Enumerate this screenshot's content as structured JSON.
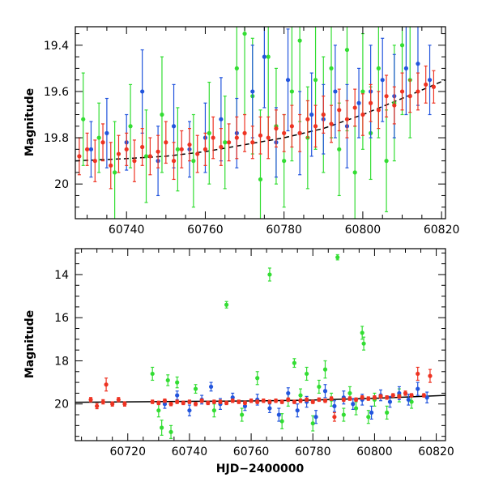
{
  "chart_data": [
    {
      "type": "scatter",
      "title": "",
      "xlabel": "",
      "ylabel": "Magnitude",
      "xlim": [
        60727,
        60821
      ],
      "ylim": [
        20.15,
        19.32
      ],
      "y_inverted": true,
      "xticks": [
        60740,
        60760,
        60780,
        60800,
        60820
      ],
      "yticks": [
        19.4,
        19.6,
        19.8,
        20
      ],
      "ytick_labels": [
        "19.4",
        "19.6",
        "19.8",
        "20"
      ],
      "grid": false,
      "legend": "none",
      "model_curve": {
        "color": "#000000",
        "style": "dashed",
        "x": [
          60727,
          60740,
          60750,
          60760,
          60770,
          60780,
          60790,
          60800,
          60810,
          60821
        ],
        "y": [
          19.9,
          19.89,
          19.88,
          19.86,
          19.83,
          19.8,
          19.76,
          19.7,
          19.63,
          19.55
        ]
      },
      "series": [
        {
          "color": "#33dd33",
          "x": [
            60729,
            60733,
            60737,
            60741,
            60745,
            60749,
            60753,
            60757,
            60761,
            60765,
            60768,
            60770,
            60772,
            60774,
            60776,
            60778,
            60780,
            60782,
            60784,
            60786,
            60788,
            60790,
            60792,
            60794,
            60796,
            60798,
            60800,
            60802,
            60804,
            60806,
            60808,
            60810,
            60812
          ],
          "y": [
            19.72,
            19.8,
            19.95,
            19.75,
            19.88,
            19.7,
            19.85,
            19.9,
            19.78,
            19.82,
            19.5,
            19.35,
            19.62,
            19.98,
            19.45,
            19.75,
            19.9,
            19.6,
            19.38,
            19.8,
            19.55,
            19.7,
            19.5,
            19.85,
            19.42,
            19.95,
            19.6,
            19.78,
            19.5,
            19.9,
            19.65,
            19.4,
            19.55
          ],
          "err": [
            0.2,
            0.15,
            0.22,
            0.18,
            0.2,
            0.25,
            0.18,
            0.2,
            0.22,
            0.2,
            0.3,
            0.35,
            0.25,
            0.3,
            0.35,
            0.25,
            0.2,
            0.3,
            0.35,
            0.22,
            0.3,
            0.25,
            0.3,
            0.2,
            0.35,
            0.2,
            0.25,
            0.2,
            0.3,
            0.22,
            0.25,
            0.3,
            0.25
          ]
        },
        {
          "color": "#2255dd",
          "x": [
            60731,
            60735,
            60740,
            60744,
            60748,
            60752,
            60756,
            60760,
            60764,
            60768,
            60772,
            60775,
            60778,
            60781,
            60784,
            60787,
            60790,
            60793,
            60796,
            60799,
            60802,
            60805,
            60808,
            60811,
            60814,
            60817
          ],
          "y": [
            19.85,
            19.78,
            19.82,
            19.6,
            19.9,
            19.75,
            19.85,
            19.8,
            19.72,
            19.78,
            19.6,
            19.45,
            19.82,
            19.55,
            19.78,
            19.7,
            19.72,
            19.6,
            19.75,
            19.65,
            19.6,
            19.55,
            19.62,
            19.5,
            19.48,
            19.55
          ],
          "err": [
            0.12,
            0.15,
            0.12,
            0.18,
            0.15,
            0.18,
            0.12,
            0.15,
            0.18,
            0.15,
            0.2,
            0.22,
            0.15,
            0.22,
            0.18,
            0.18,
            0.15,
            0.2,
            0.18,
            0.15,
            0.2,
            0.18,
            0.18,
            0.2,
            0.18,
            0.15
          ]
        },
        {
          "color": "#ee3322",
          "x": [
            60728,
            60730,
            60732,
            60734,
            60736,
            60738,
            60740,
            60742,
            60744,
            60746,
            60748,
            60750,
            60752,
            60754,
            60756,
            60758,
            60760,
            60762,
            60764,
            60766,
            60768,
            60770,
            60772,
            60774,
            60776,
            60778,
            60780,
            60782,
            60784,
            60786,
            60788,
            60790,
            60792,
            60794,
            60796,
            60798,
            60800,
            60802,
            60804,
            60806,
            60808,
            60810,
            60812,
            60814,
            60816,
            60818
          ],
          "y": [
            19.88,
            19.85,
            19.9,
            19.82,
            19.92,
            19.87,
            19.85,
            19.9,
            19.84,
            19.88,
            19.86,
            19.82,
            19.9,
            19.85,
            19.83,
            19.87,
            19.85,
            19.8,
            19.84,
            19.82,
            19.8,
            19.78,
            19.82,
            19.79,
            19.8,
            19.76,
            19.78,
            19.75,
            19.78,
            19.72,
            19.75,
            19.7,
            19.74,
            19.68,
            19.72,
            19.67,
            19.7,
            19.65,
            19.68,
            19.62,
            19.66,
            19.6,
            19.62,
            19.6,
            19.57,
            19.58
          ],
          "err": [
            0.08,
            0.07,
            0.09,
            0.08,
            0.1,
            0.08,
            0.07,
            0.09,
            0.08,
            0.08,
            0.07,
            0.09,
            0.08,
            0.08,
            0.07,
            0.08,
            0.07,
            0.09,
            0.08,
            0.08,
            0.09,
            0.08,
            0.07,
            0.08,
            0.09,
            0.08,
            0.08,
            0.09,
            0.08,
            0.08,
            0.09,
            0.08,
            0.08,
            0.09,
            0.08,
            0.08,
            0.09,
            0.08,
            0.08,
            0.09,
            0.08,
            0.08,
            0.07,
            0.08,
            0.08,
            0.07
          ]
        }
      ]
    },
    {
      "type": "scatter",
      "title": "",
      "xlabel": "HJD−2400000",
      "ylabel": "Magnitude",
      "xlim": [
        60703,
        60823
      ],
      "ylim": [
        21.7,
        12.8
      ],
      "y_inverted": true,
      "xticks": [
        60720,
        60740,
        60760,
        60780,
        60800,
        60820
      ],
      "yticks": [
        14,
        16,
        18,
        20
      ],
      "ytick_labels": [
        "14",
        "16",
        "18",
        "20"
      ],
      "grid": false,
      "legend": "none",
      "model_curve": {
        "color": "#000000",
        "style": "solid",
        "x": [
          60703,
          60720,
          60740,
          60760,
          60780,
          60800,
          60823
        ],
        "y": [
          19.92,
          19.9,
          19.88,
          19.86,
          19.82,
          19.74,
          19.6
        ]
      },
      "series": [
        {
          "color": "#33dd33",
          "x": [
            60728,
            60730,
            60731,
            60733,
            60734,
            60736,
            60742,
            60748,
            60752,
            60757,
            60762,
            60766,
            60770,
            60772,
            60774,
            60776,
            60778,
            60780,
            60782,
            60784,
            60786,
            60788,
            60790,
            60792,
            60794,
            60796,
            60796.5,
            60798,
            60800,
            60804,
            60808,
            60812
          ],
          "y": [
            18.6,
            20.3,
            21.1,
            18.9,
            21.3,
            19.0,
            19.3,
            20.3,
            15.4,
            20.5,
            18.8,
            14.0,
            20.8,
            19.8,
            18.1,
            19.6,
            18.6,
            20.9,
            19.2,
            18.4,
            19.8,
            13.2,
            20.5,
            19.5,
            20.2,
            16.7,
            17.2,
            20.6,
            19.8,
            20.4,
            19.6,
            19.9
          ],
          "err": [
            0.3,
            0.3,
            0.35,
            0.25,
            0.3,
            0.25,
            0.2,
            0.3,
            0.15,
            0.3,
            0.3,
            0.3,
            0.35,
            0.3,
            0.2,
            0.3,
            0.3,
            0.35,
            0.3,
            0.4,
            0.3,
            0.12,
            0.3,
            0.3,
            0.3,
            0.3,
            0.3,
            0.3,
            0.3,
            0.3,
            0.3,
            0.3
          ]
        },
        {
          "color": "#2255dd",
          "x": [
            60732,
            60736,
            60740,
            60744,
            60747,
            60750,
            60754,
            60758,
            60762,
            60766,
            60769,
            60772,
            60775,
            60778,
            60781,
            60784,
            60787,
            60790,
            60793,
            60796,
            60799,
            60802,
            60805,
            60808,
            60811,
            60814,
            60817
          ],
          "y": [
            20.0,
            19.6,
            20.3,
            19.8,
            19.2,
            20.0,
            19.7,
            20.1,
            19.8,
            20.2,
            20.5,
            19.5,
            20.3,
            19.9,
            20.6,
            19.4,
            20.1,
            19.7,
            20.0,
            19.8,
            20.4,
            19.6,
            19.9,
            19.5,
            19.8,
            19.3,
            19.7
          ],
          "err": [
            0.2,
            0.2,
            0.25,
            0.2,
            0.2,
            0.25,
            0.2,
            0.2,
            0.25,
            0.2,
            0.3,
            0.25,
            0.3,
            0.25,
            0.3,
            0.3,
            0.25,
            0.3,
            0.25,
            0.25,
            0.3,
            0.25,
            0.25,
            0.3,
            0.25,
            0.3,
            0.25
          ]
        },
        {
          "color": "#ee3322",
          "x": [
            60708,
            60710,
            60712,
            60713,
            60715,
            60717,
            60719,
            60728,
            60730,
            60732,
            60734,
            60736,
            60738,
            60740,
            60742,
            60744,
            60746,
            60748,
            60750,
            60752,
            60754,
            60756,
            60758,
            60760,
            60762,
            60764,
            60766,
            60768,
            60770,
            60772,
            60774,
            60776,
            60778,
            60780,
            60782,
            60784,
            60786,
            60787,
            60790,
            60792,
            60794,
            60796,
            60798,
            60800,
            60802,
            60804,
            60806,
            60808,
            60810,
            60812,
            60814,
            60816,
            60818
          ],
          "y": [
            19.8,
            20.1,
            19.9,
            19.1,
            20.0,
            19.8,
            20.0,
            19.9,
            19.95,
            19.85,
            20.0,
            19.9,
            19.95,
            19.9,
            20.0,
            19.85,
            19.95,
            19.9,
            19.9,
            19.95,
            19.85,
            19.9,
            19.95,
            19.85,
            19.9,
            19.85,
            19.9,
            19.85,
            19.9,
            19.8,
            19.9,
            19.85,
            19.8,
            19.9,
            19.8,
            19.85,
            19.75,
            20.6,
            19.8,
            19.75,
            19.8,
            19.7,
            19.75,
            19.7,
            19.65,
            19.7,
            19.6,
            19.65,
            19.5,
            19.6,
            18.6,
            19.6,
            18.7
          ],
          "err": [
            0.1,
            0.12,
            0.1,
            0.3,
            0.1,
            0.1,
            0.1,
            0.08,
            0.08,
            0.08,
            0.08,
            0.08,
            0.08,
            0.08,
            0.08,
            0.08,
            0.08,
            0.08,
            0.08,
            0.08,
            0.08,
            0.08,
            0.08,
            0.08,
            0.08,
            0.08,
            0.08,
            0.08,
            0.08,
            0.08,
            0.08,
            0.08,
            0.08,
            0.08,
            0.08,
            0.08,
            0.08,
            0.2,
            0.08,
            0.08,
            0.08,
            0.08,
            0.08,
            0.08,
            0.08,
            0.08,
            0.08,
            0.08,
            0.1,
            0.08,
            0.3,
            0.08,
            0.3
          ]
        }
      ]
    }
  ]
}
